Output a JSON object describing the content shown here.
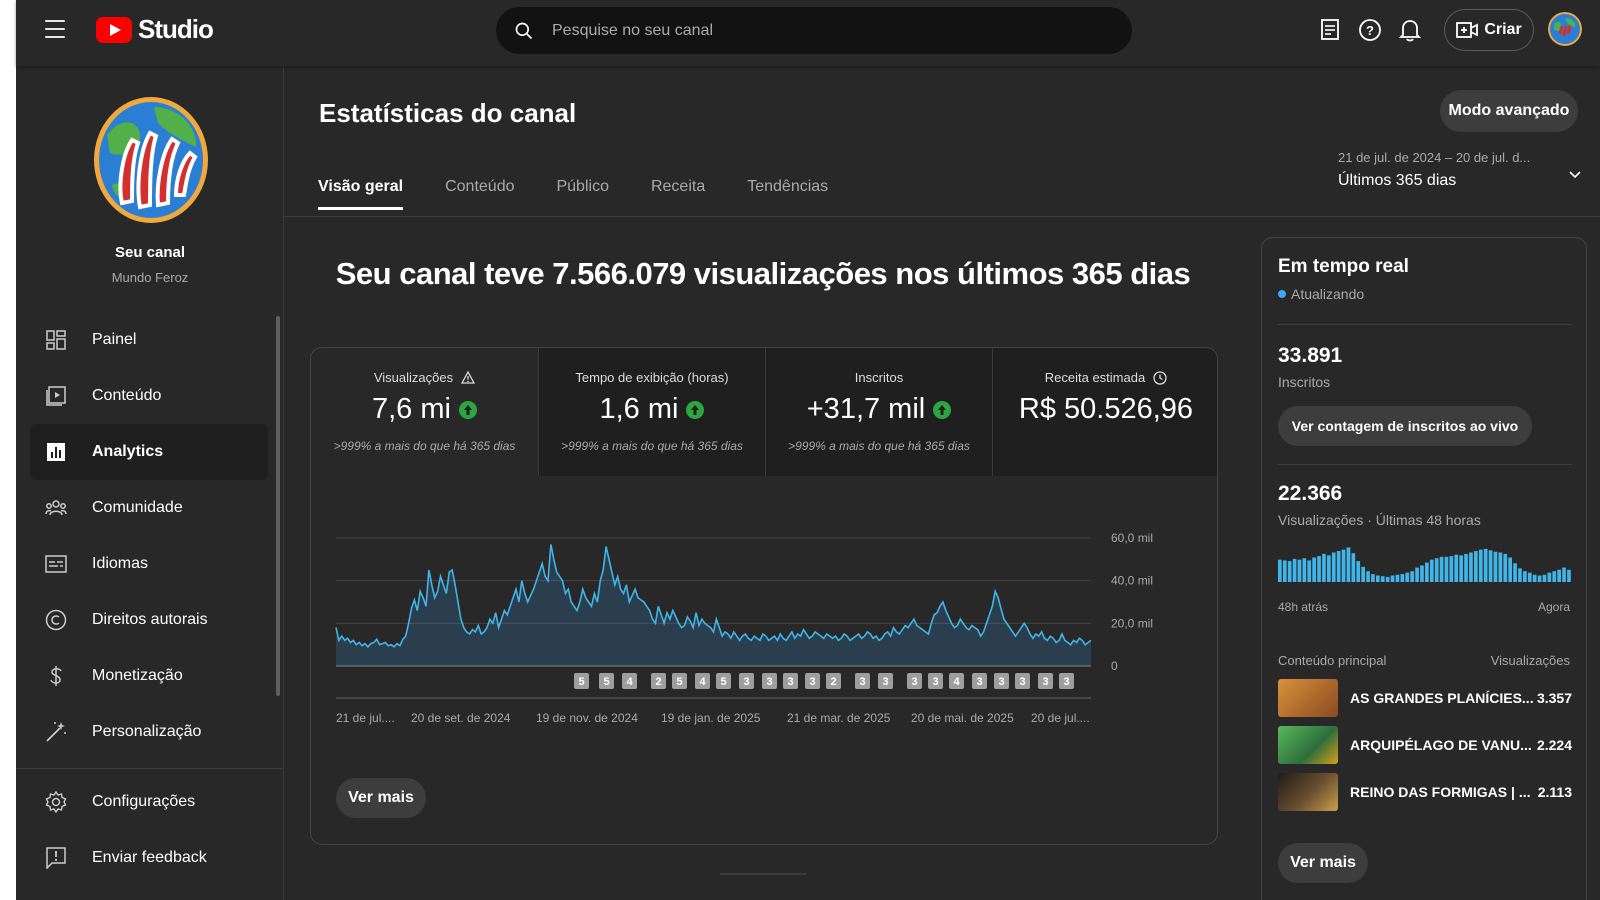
{
  "app": {
    "logo_text": "Studio"
  },
  "search": {
    "placeholder": "Pesquise no seu canal"
  },
  "topbar": {
    "create_label": "Criar",
    "icons": [
      "subtitles-icon",
      "help-icon",
      "bell-icon",
      "create-video-icon"
    ]
  },
  "channel": {
    "label": "Seu canal",
    "name": "Mundo Feroz"
  },
  "sidebar": {
    "items": [
      {
        "label": "Painel",
        "icon": "dashboard-icon"
      },
      {
        "label": "Conteúdo",
        "icon": "content-icon"
      },
      {
        "label": "Analytics",
        "icon": "analytics-icon",
        "active": true
      },
      {
        "label": "Comunidade",
        "icon": "community-icon"
      },
      {
        "label": "Idiomas",
        "icon": "languages-icon"
      },
      {
        "label": "Direitos autorais",
        "icon": "copyright-icon"
      },
      {
        "label": "Monetização",
        "icon": "monetization-icon"
      },
      {
        "label": "Personalização",
        "icon": "customization-icon"
      }
    ],
    "bottom": [
      {
        "label": "Configurações",
        "icon": "gear-icon"
      },
      {
        "label": "Enviar feedback",
        "icon": "feedback-icon"
      }
    ]
  },
  "page": {
    "title": "Estatísticas do canal",
    "advanced_mode": "Modo avançado",
    "tabs": [
      "Visão geral",
      "Conteúdo",
      "Público",
      "Receita",
      "Tendências"
    ],
    "active_tab": "Visão geral",
    "date_range": {
      "dates": "21 de jul. de 2024 – 20 de jul. d...",
      "label": "Últimos 365 dias"
    },
    "headline": "Seu canal teve 7.566.079 visualizações nos últimos 365 dias"
  },
  "metrics": [
    {
      "label": "Visualizações",
      "value": "7,6 mi",
      "delta": ">999% a mais do que há 365 dias",
      "trend": "up",
      "note_icon": "warning-icon"
    },
    {
      "label": "Tempo de exibição (horas)",
      "value": "1,6 mi",
      "delta": ">999% a mais do que há 365 dias",
      "trend": "up"
    },
    {
      "label": "Inscritos",
      "value": "+31,7 mil",
      "delta": ">999% a mais do que há 365 dias",
      "trend": "up"
    },
    {
      "label": "Receita estimada",
      "value": "R$ 50.526,96",
      "delta": "",
      "note_icon": "clock-icon"
    }
  ],
  "see_more": "Ver mais",
  "chart_data": {
    "type": "area",
    "title": "",
    "y_ticks": [
      "0",
      "20,0 mil",
      "40,0 mil",
      "60,0 mil"
    ],
    "ylim": [
      0,
      60000
    ],
    "x_tick_labels": [
      "21 de jul....",
      "20 de set. de 2024",
      "19 de nov. de 2024",
      "19 de jan. de 2025",
      "21 de mar. de 2025",
      "20 de mai. de 2025",
      "20 de jul...."
    ],
    "series": [
      {
        "values": [
          18000,
          12000,
          14000,
          12000,
          13000,
          11000,
          12000,
          10000,
          11000,
          9500,
          10500,
          9000,
          10500,
          11000,
          12500,
          10000,
          10500,
          11000,
          9500,
          10000,
          9000,
          10500,
          9500,
          12500,
          14000,
          20000,
          27000,
          31000,
          26000,
          35000,
          32000,
          28000,
          45000,
          38000,
          32000,
          35000,
          42000,
          38000,
          34000,
          44000,
          45000,
          38000,
          30000,
          22000,
          18000,
          16000,
          15000,
          17000,
          16000,
          19000,
          15000,
          16000,
          18000,
          22000,
          20000,
          25000,
          18000,
          22000,
          26000,
          24000,
          28000,
          32000,
          36000,
          30000,
          40000,
          34000,
          30000,
          33000,
          36000,
          40000,
          44000,
          48000,
          42000,
          40000,
          57000,
          50000,
          44000,
          42000,
          40000,
          34000,
          36000,
          30000,
          28000,
          26000,
          30000,
          36000,
          32000,
          30000,
          28000,
          34000,
          30000,
          40000,
          45000,
          56000,
          50000,
          44000,
          38000,
          42000,
          36000,
          34000,
          38000,
          30000,
          33000,
          36000,
          32000,
          31000,
          30000,
          28000,
          26000,
          22000,
          20000,
          28000,
          24000,
          20000,
          25000,
          22000,
          26000,
          23000,
          20000,
          18000,
          19000,
          23000,
          21000,
          18000,
          25000,
          19000,
          22000,
          20000,
          19000,
          18000,
          16000,
          22000,
          18000,
          14000,
          16000,
          15000,
          13000,
          16000,
          14000,
          12000,
          14000,
          15000,
          13000,
          12000,
          14000,
          13000,
          12000,
          15000,
          14000,
          12000,
          13000,
          14000,
          12000,
          15000,
          13000,
          12000,
          14000,
          16000,
          13000,
          15000,
          14000,
          17000,
          15000,
          13000,
          14000,
          16000,
          15000,
          14000,
          13000,
          15000,
          14000,
          13000,
          14000,
          12000,
          13000,
          15000,
          14000,
          12000,
          13000,
          14000,
          15000,
          13000,
          14000,
          16000,
          15000,
          13000,
          14000,
          12000,
          13000,
          15000,
          16000,
          14000,
          18000,
          16000,
          15000,
          17000,
          19000,
          18000,
          20000,
          22000,
          19000,
          18000,
          17000,
          16000,
          15000,
          20000,
          24000,
          25000,
          28000,
          30000,
          26000,
          23000,
          20000,
          18000,
          19000,
          22000,
          20000,
          18000,
          17000,
          19000,
          18000,
          17000,
          14000,
          16000,
          20000,
          24000,
          28000,
          35000,
          32000,
          27000,
          22000,
          20000,
          18000,
          16000,
          14000,
          16000,
          18000,
          20000,
          18000,
          15000,
          13000,
          15000,
          14000,
          16000,
          13000,
          12000,
          14000,
          13000,
          11000,
          12000,
          15000,
          12000,
          11000,
          10000,
          12000,
          11000,
          13000,
          12000,
          10000,
          11000,
          12000
        ]
      }
    ],
    "markers": [
      "5",
      "5",
      "4",
      "2",
      "5",
      "4",
      "5",
      "3",
      "3",
      "3",
      "3",
      "2",
      "3",
      "3",
      "3",
      "3",
      "4",
      "3",
      "3",
      "3",
      "3",
      "3"
    ]
  },
  "realtime": {
    "title": "Em tempo real",
    "status": "Atualizando",
    "subscribers_value": "33.891",
    "subscribers_label": "Inscritos",
    "live_count_button": "Ver contagem de inscritos ao vivo",
    "views_value": "22.366",
    "views_label": "Visualizações · Últimas 48 horas",
    "bars": [
      0.62,
      0.6,
      0.58,
      0.64,
      0.62,
      0.66,
      0.6,
      0.68,
      0.72,
      0.78,
      0.74,
      0.82,
      0.86,
      0.9,
      0.96,
      0.8,
      0.58,
      0.42,
      0.3,
      0.22,
      0.18,
      0.16,
      0.14,
      0.18,
      0.2,
      0.22,
      0.26,
      0.3,
      0.4,
      0.46,
      0.54,
      0.62,
      0.66,
      0.7,
      0.7,
      0.72,
      0.76,
      0.74,
      0.78,
      0.82,
      0.86,
      0.9,
      0.92,
      0.88,
      0.84,
      0.82,
      0.78,
      0.68,
      0.52,
      0.38,
      0.3,
      0.26,
      0.2,
      0.18,
      0.2,
      0.26,
      0.3,
      0.34,
      0.4,
      0.34
    ],
    "axis_left": "48h atrás",
    "axis_right": "Agora",
    "content_header": "Conteúdo principal",
    "views_header": "Visualizações",
    "content": [
      {
        "title": "AS GRANDES PLANÍCIES...",
        "views": "3.357",
        "thumb_color": "#b46a32"
      },
      {
        "title": "ARQUIPÉLAGO DE VANU...",
        "views": "2.224",
        "thumb_color": "#3f8a54"
      },
      {
        "title": "REINO DAS FORMIGAS | ...",
        "views": "2.113",
        "thumb_color": "#3b3630"
      }
    ],
    "see_more": "Ver mais"
  }
}
